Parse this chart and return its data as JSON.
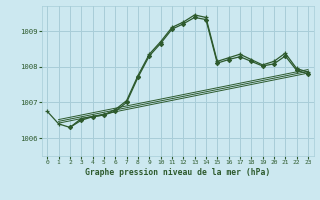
{
  "title": "Graphe pression niveau de la mer (hPa)",
  "background_color": "#cce8f0",
  "grid_color": "#a8cdd8",
  "line_color": "#2d5a2d",
  "ylim": [
    1005.5,
    1009.7
  ],
  "xlim": [
    -0.5,
    23.5
  ],
  "yticks": [
    1006,
    1007,
    1008,
    1009
  ],
  "xticks": [
    0,
    1,
    2,
    3,
    4,
    5,
    6,
    7,
    8,
    9,
    10,
    11,
    12,
    13,
    14,
    15,
    16,
    17,
    18,
    19,
    20,
    21,
    22,
    23
  ],
  "series_plus": {
    "x": [
      0,
      1,
      2,
      3,
      4,
      5,
      6,
      7,
      8,
      9,
      10,
      11,
      12,
      13,
      14,
      15,
      16,
      17,
      18,
      19,
      20,
      21,
      22,
      23
    ],
    "y": [
      1006.75,
      1006.4,
      1006.3,
      1006.55,
      1006.6,
      1006.65,
      1006.8,
      1007.05,
      1007.75,
      1008.35,
      1008.7,
      1009.1,
      1009.25,
      1009.45,
      1009.38,
      1008.15,
      1008.25,
      1008.35,
      1008.2,
      1008.05,
      1008.15,
      1008.38,
      1007.95,
      1007.85
    ]
  },
  "series_diamond": {
    "x": [
      2,
      3,
      4,
      5,
      6,
      7,
      8,
      9,
      10,
      11,
      12,
      13,
      14,
      15,
      16,
      17,
      18,
      19,
      20,
      21,
      22,
      23
    ],
    "y": [
      1006.3,
      1006.5,
      1006.6,
      1006.65,
      1006.75,
      1007.0,
      1007.7,
      1008.3,
      1008.65,
      1009.05,
      1009.2,
      1009.38,
      1009.32,
      1008.1,
      1008.2,
      1008.28,
      1008.15,
      1008.02,
      1008.08,
      1008.3,
      1007.9,
      1007.8
    ]
  },
  "trend1": {
    "x": [
      1.0,
      23.0
    ],
    "y": [
      1006.42,
      1007.82
    ]
  },
  "trend2": {
    "x": [
      1.0,
      23.0
    ],
    "y": [
      1006.47,
      1007.87
    ]
  },
  "trend3": {
    "x": [
      1.0,
      23.0
    ],
    "y": [
      1006.52,
      1007.92
    ]
  }
}
